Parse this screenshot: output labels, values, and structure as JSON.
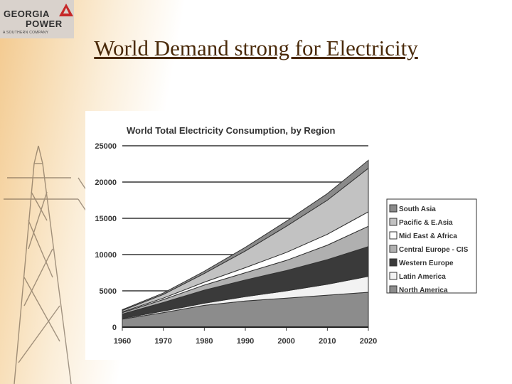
{
  "logo": {
    "line1": "GEORGIA",
    "line2": "POWER",
    "sub": "A SOUTHERN COMPANY",
    "brand_color": "#c62828"
  },
  "slide": {
    "title": "World Demand strong for Electricity"
  },
  "chart_data": {
    "type": "area",
    "stacked": true,
    "title": "World Total Electricity Consumption, by Region",
    "xlabel": "",
    "ylabel": "",
    "x": [
      1960,
      1970,
      1980,
      1990,
      2000,
      2010,
      2020
    ],
    "ylim": [
      0,
      25000
    ],
    "yticks": [
      0,
      5000,
      10000,
      15000,
      20000,
      25000
    ],
    "grid": true,
    "legend_position": "right",
    "series": [
      {
        "name": "North America",
        "color": "#8c8c8c",
        "values": [
          1100,
          2000,
          3000,
          3600,
          4000,
          4400,
          4800
        ]
      },
      {
        "name": "Latin America",
        "color": "#f2f2f2",
        "values": [
          100,
          200,
          300,
          600,
          1000,
          1500,
          2200
        ]
      },
      {
        "name": "Western Europe",
        "color": "#3a3a3a",
        "values": [
          600,
          1200,
          1800,
          2300,
          2800,
          3400,
          4100
        ]
      },
      {
        "name": "Central Europe - CIS",
        "color": "#b0b0b0",
        "values": [
          200,
          400,
          700,
          1000,
          1400,
          2000,
          2800
        ]
      },
      {
        "name": "Mid East & Africa",
        "color": "#ffffff",
        "values": [
          100,
          200,
          400,
          700,
          1100,
          1500,
          2000
        ]
      },
      {
        "name": "Pacific & E.Asia",
        "color": "#c2c2c2",
        "values": [
          200,
          500,
          1200,
          2300,
          3600,
          4700,
          6000
        ]
      },
      {
        "name": "South Asia",
        "color": "#8a8a8a",
        "values": [
          100,
          200,
          300,
          500,
          700,
          900,
          1100
        ]
      }
    ]
  }
}
